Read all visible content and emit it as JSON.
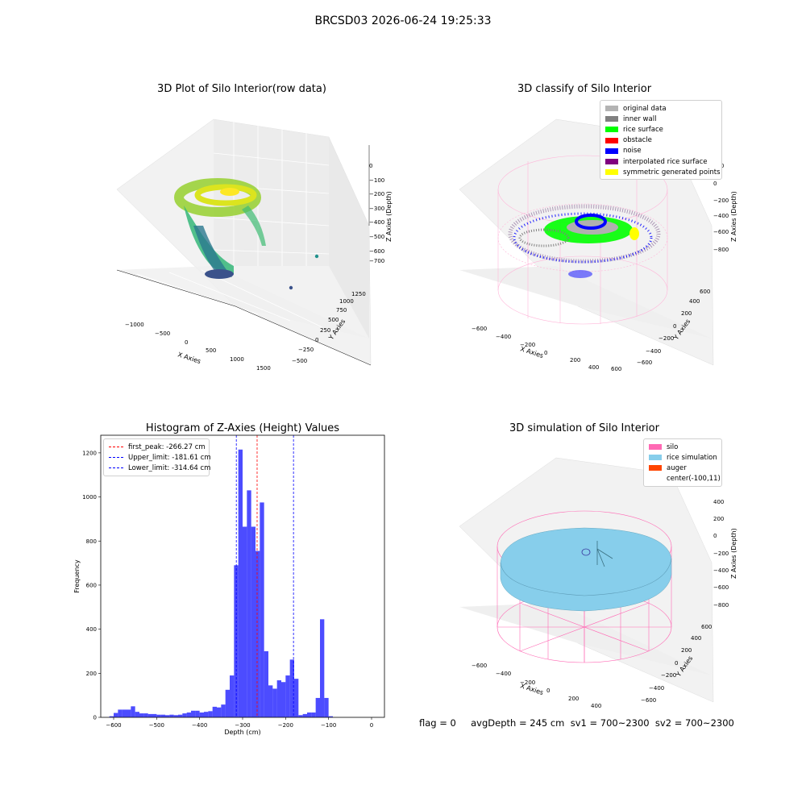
{
  "suptitle": "BRCSD03 2026-06-24 19:25:33",
  "panels": {
    "raw": {
      "title": "3D Plot of Silo Interior(row data)",
      "xlabel": "X Axies",
      "ylabel": "Y Axies",
      "zlabel": "Z Axies (Depth)",
      "xticks": [
        "−1000",
        "−500",
        "0",
        "500",
        "1000",
        "1500"
      ],
      "yticks": [
        "−500",
        "−250",
        "0",
        "250",
        "500",
        "750",
        "1000",
        "1250"
      ],
      "zticks": [
        "0",
        "−100",
        "−200",
        "−300",
        "−400",
        "−500",
        "−600",
        "−700"
      ]
    },
    "classify": {
      "title": "3D classify of Silo Interior",
      "xlabel": "X Axies",
      "ylabel": "Y Axies",
      "zlabel": "Z Axies (Depth)",
      "xticks": [
        "−600",
        "−400",
        "−200",
        "0",
        "200",
        "400",
        "600"
      ],
      "yticks": [
        "−600",
        "−400",
        "−200",
        "0",
        "200",
        "400",
        "600"
      ],
      "zticks": [
        "200",
        "0",
        "−200",
        "−400",
        "−600",
        "−800"
      ],
      "legend": [
        {
          "label": "original data",
          "color": "#b3b3b3"
        },
        {
          "label": "inner wall",
          "color": "#808080"
        },
        {
          "label": "rice surface",
          "color": "#00ff00"
        },
        {
          "label": "obstacle",
          "color": "#ff0000"
        },
        {
          "label": "noise",
          "color": "#0000ff"
        },
        {
          "label": "interpolated rice surface",
          "color": "#800080"
        },
        {
          "label": "symmetric generated points",
          "color": "#ffff00"
        }
      ]
    },
    "simulation": {
      "title": "3D simulation of Silo Interior",
      "xlabel": "X Axies",
      "ylabel": "Y Axies",
      "zlabel": "Z Axies (Depth)",
      "xticks": [
        "−600",
        "−400",
        "−200",
        "0",
        "200",
        "400"
      ],
      "yticks": [
        "−600",
        "−400",
        "−200",
        "0",
        "200",
        "400",
        "600"
      ],
      "zticks": [
        "400",
        "200",
        "0",
        "−200",
        "−400",
        "−600",
        "−800"
      ],
      "legend": [
        {
          "label": "silo",
          "color": "#ff69b4"
        },
        {
          "label": "rice simulation",
          "color": "#87ceeb"
        },
        {
          "label": "auger",
          "color": "#ff4500"
        },
        {
          "label": "center(-100,11)",
          "color": ""
        }
      ]
    }
  },
  "chart_data": {
    "type": "bar",
    "title": "Histogram of Z-Axies (Height) Values",
    "xlabel": "Depth (cm)",
    "ylabel": "Frequency",
    "xlim": [
      -630,
      30
    ],
    "ylim": [
      0,
      1280
    ],
    "xticks": [
      -600,
      -500,
      -400,
      -300,
      -200,
      -100,
      0
    ],
    "yticks": [
      0,
      200,
      400,
      600,
      800,
      1000,
      1200
    ],
    "bar_color": "#0000ff",
    "bins": [
      [
        -610,
        -600,
        5
      ],
      [
        -600,
        -590,
        20
      ],
      [
        -590,
        -580,
        35
      ],
      [
        -580,
        -570,
        35
      ],
      [
        -570,
        -560,
        35
      ],
      [
        -560,
        -550,
        50
      ],
      [
        -550,
        -540,
        25
      ],
      [
        -540,
        -530,
        18
      ],
      [
        -530,
        -520,
        18
      ],
      [
        -520,
        -510,
        15
      ],
      [
        -510,
        -500,
        15
      ],
      [
        -500,
        -490,
        12
      ],
      [
        -490,
        -480,
        12
      ],
      [
        -480,
        -470,
        10
      ],
      [
        -470,
        -460,
        12
      ],
      [
        -460,
        -450,
        10
      ],
      [
        -450,
        -440,
        12
      ],
      [
        -440,
        -430,
        18
      ],
      [
        -430,
        -420,
        22
      ],
      [
        -420,
        -410,
        30
      ],
      [
        -410,
        -400,
        30
      ],
      [
        -400,
        -390,
        22
      ],
      [
        -390,
        -380,
        25
      ],
      [
        -380,
        -370,
        28
      ],
      [
        -370,
        -360,
        48
      ],
      [
        -360,
        -350,
        45
      ],
      [
        -350,
        -340,
        58
      ],
      [
        -340,
        -330,
        125
      ],
      [
        -330,
        -320,
        190
      ],
      [
        -320,
        -310,
        690
      ],
      [
        -310,
        -300,
        1215
      ],
      [
        -300,
        -290,
        865
      ],
      [
        -290,
        -280,
        1030
      ],
      [
        -280,
        -270,
        865
      ],
      [
        -270,
        -260,
        755
      ],
      [
        -260,
        -250,
        975
      ],
      [
        -250,
        -240,
        300
      ],
      [
        -240,
        -230,
        145
      ],
      [
        -230,
        -220,
        130
      ],
      [
        -220,
        -210,
        168
      ],
      [
        -210,
        -200,
        160
      ],
      [
        -200,
        -190,
        190
      ],
      [
        -190,
        -180,
        262
      ],
      [
        -180,
        -170,
        175
      ],
      [
        -170,
        -160,
        10
      ],
      [
        -160,
        -150,
        15
      ],
      [
        -150,
        -140,
        22
      ],
      [
        -140,
        -130,
        22
      ],
      [
        -130,
        -120,
        88
      ],
      [
        -120,
        -110,
        445
      ],
      [
        -110,
        -100,
        88
      ],
      [
        -100,
        -90,
        5
      ]
    ],
    "vlines": [
      {
        "label": "first_peak: -266.27 cm",
        "x": -266.27,
        "color": "#ff0000"
      },
      {
        "label": "Upper_limit: -181.61 cm",
        "x": -181.61,
        "color": "#0000ff"
      },
      {
        "label": "Lower_limit: -314.64 cm",
        "x": -314.64,
        "color": "#0000ff"
      }
    ]
  },
  "footer": "flag = 0     avgDepth = 245 cm  sv1 = 700~2300  sv2 = 700~2300"
}
